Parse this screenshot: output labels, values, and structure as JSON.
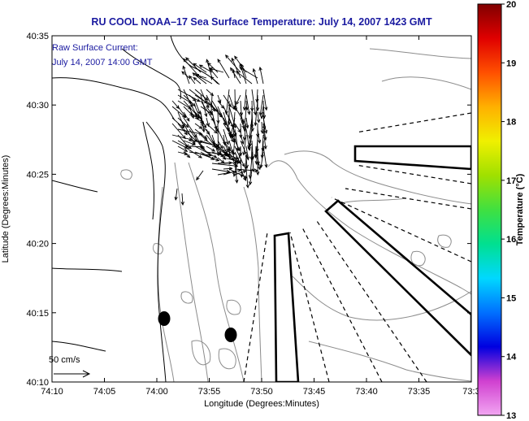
{
  "title": "RU COOL  NOAA–17  Sea Surface Temperature:  July 14, 2007 1423 GMT",
  "annotation": {
    "line1": "Raw Surface Current:",
    "line2": "July 14, 2007 14:00 GMT"
  },
  "scale_label": "50 cm/s",
  "map": {
    "xlabel": "Longitude (Degrees:Minutes)",
    "ylabel": "Latitude (Degrees:Minutes)",
    "lon_ticks": [
      "74:10",
      "74:05",
      "74:00",
      "73:55",
      "73:50",
      "73:45",
      "73:40",
      "73:35",
      "73:3"
    ],
    "lat_ticks": [
      "40:35",
      "40:30",
      "40:25",
      "40:20",
      "40:15",
      "40:10"
    ]
  },
  "colorbar": {
    "label": "Temperature (°C)",
    "ticks": [
      "20",
      "19",
      "18",
      "17",
      "16",
      "15",
      "14",
      "13"
    ],
    "range": [
      13,
      20
    ],
    "colors": [
      "#f2a6f2",
      "#d040d0",
      "#0000e0",
      "#0070ff",
      "#00d8ff",
      "#00e090",
      "#40e040",
      "#a0e000",
      "#f0f000",
      "#ffb000",
      "#ff5000",
      "#e00000",
      "#800000"
    ]
  },
  "markers": [
    {
      "name": "buoy-1"
    },
    {
      "name": "buoy-2"
    }
  ],
  "colors": {
    "title": "#1a1aa0",
    "coast": "#000000",
    "bathymetry": "#888888"
  }
}
